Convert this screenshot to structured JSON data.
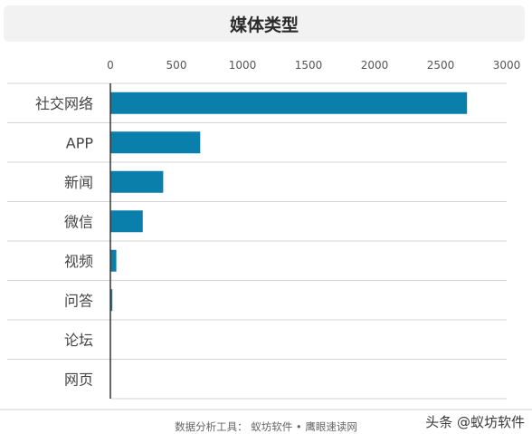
{
  "chart_data": {
    "type": "bar",
    "orientation": "horizontal",
    "title": "媒体类型",
    "categories": [
      "社交网络",
      "APP",
      "新闻",
      "微信",
      "视频",
      "问答",
      "论坛",
      "网页"
    ],
    "values": [
      2700,
      680,
      400,
      245,
      45,
      15,
      0,
      0
    ],
    "xlim": [
      0,
      3000
    ],
    "x_ticks": [
      0,
      500,
      1000,
      1500,
      2000,
      2500,
      3000
    ],
    "x_axis_position": "top",
    "grid": "horizontal",
    "bar_color": "#0b7fab"
  },
  "footer": {
    "source": "数据分析工具：  蚁坊软件 • 鹰眼速读网"
  },
  "watermark": "头条 @蚁坊软件"
}
